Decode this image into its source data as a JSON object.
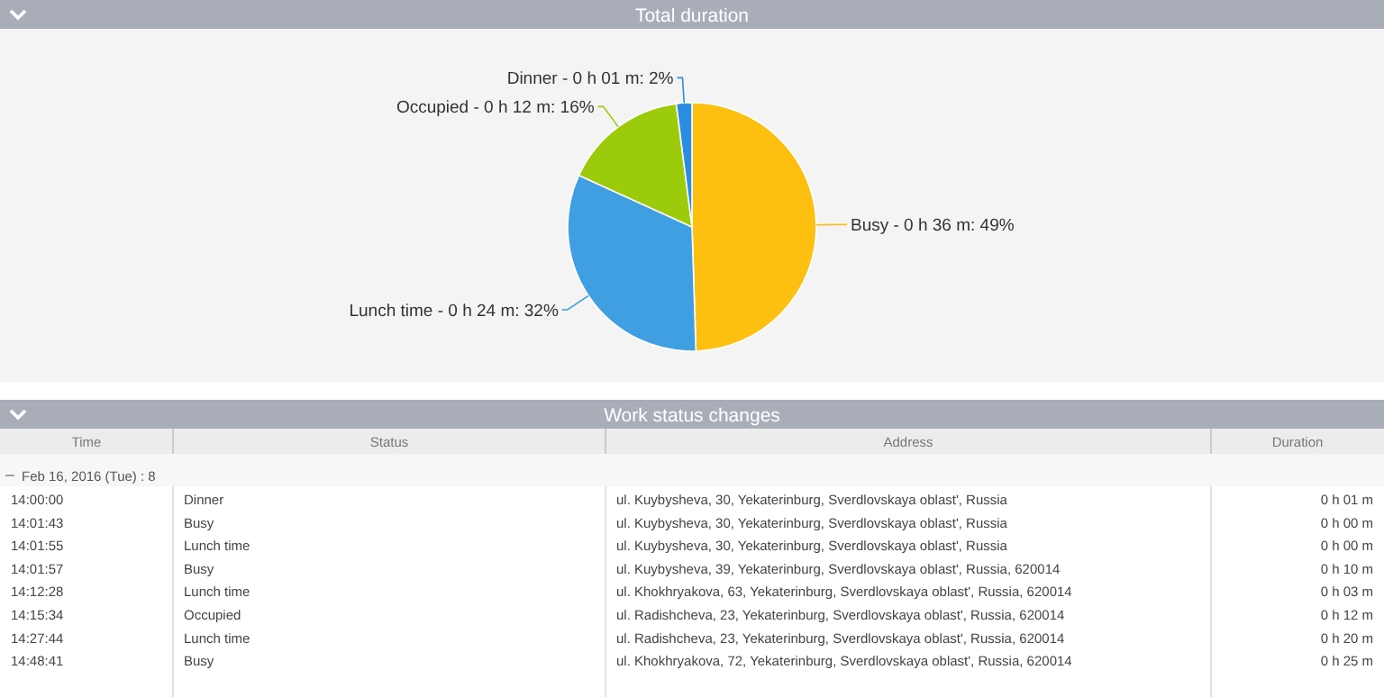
{
  "chart_data": [
    {
      "type": "pie",
      "title": "Total duration",
      "categories": [
        "Busy",
        "Lunch time",
        "Occupied",
        "Dinner"
      ],
      "values": [
        49,
        32,
        16,
        2
      ],
      "colors": [
        "#fdc010",
        "#3f9fe0",
        "#9bcb0a",
        "#2a8ee0"
      ],
      "value_labels": [
        "- 0 h 36 m: 49%",
        "- 0 h 24 m: 32%",
        "- 0 h 12 m: 16%",
        "- 0 h 01 m: 2%"
      ]
    },
    {
      "type": "other",
      "title": "Work status changes",
      "categories": [
        "Time",
        "Status",
        "Address",
        "Duration"
      ],
      "annotations": [
        "Feb 16, 2016 (Tue) : 8",
        "14:00:00",
        "Dinner",
        "ul. Kuybysheva, 30, Yekaterinburg, Sverdlovskaya oblast', Russia",
        "0 h 01 m",
        "14:01:43",
        "Busy",
        "ul. Kuybysheva, 30, Yekaterinburg, Sverdlovskaya oblast', Russia",
        "0 h 00 m",
        "14:01:55",
        "Lunch time",
        "ul. Kuybysheva, 30, Yekaterinburg, Sverdlovskaya oblast', Russia",
        "0 h 00 m",
        "14:01:57",
        "Busy",
        "ul. Kuybysheva, 39, Yekaterinburg, Sverdlovskaya oblast', Russia, 620014",
        "0 h 10 m",
        "14:12:28",
        "Lunch time",
        "ul. Khokhryakova, 63, Yekaterinburg, Sverdlovskaya oblast', Russia, 620014",
        "0 h 03 m",
        "14:15:34",
        "Occupied",
        "ul. Radishcheva, 23, Yekaterinburg, Sverdlovskaya oblast', Russia, 620014",
        "0 h 12 m",
        "14:27:44",
        "Lunch time",
        "ul. Radishcheva, 23, Yekaterinburg, Sverdlovskaya oblast', Russia, 620014",
        "0 h 20 m",
        "14:48:41",
        "Busy",
        "ul. Khokhryakova, 72, Yekaterinburg, Sverdlovskaya oblast', Russia, 620014",
        "0 h 25 m"
      ]
    }
  ]
}
